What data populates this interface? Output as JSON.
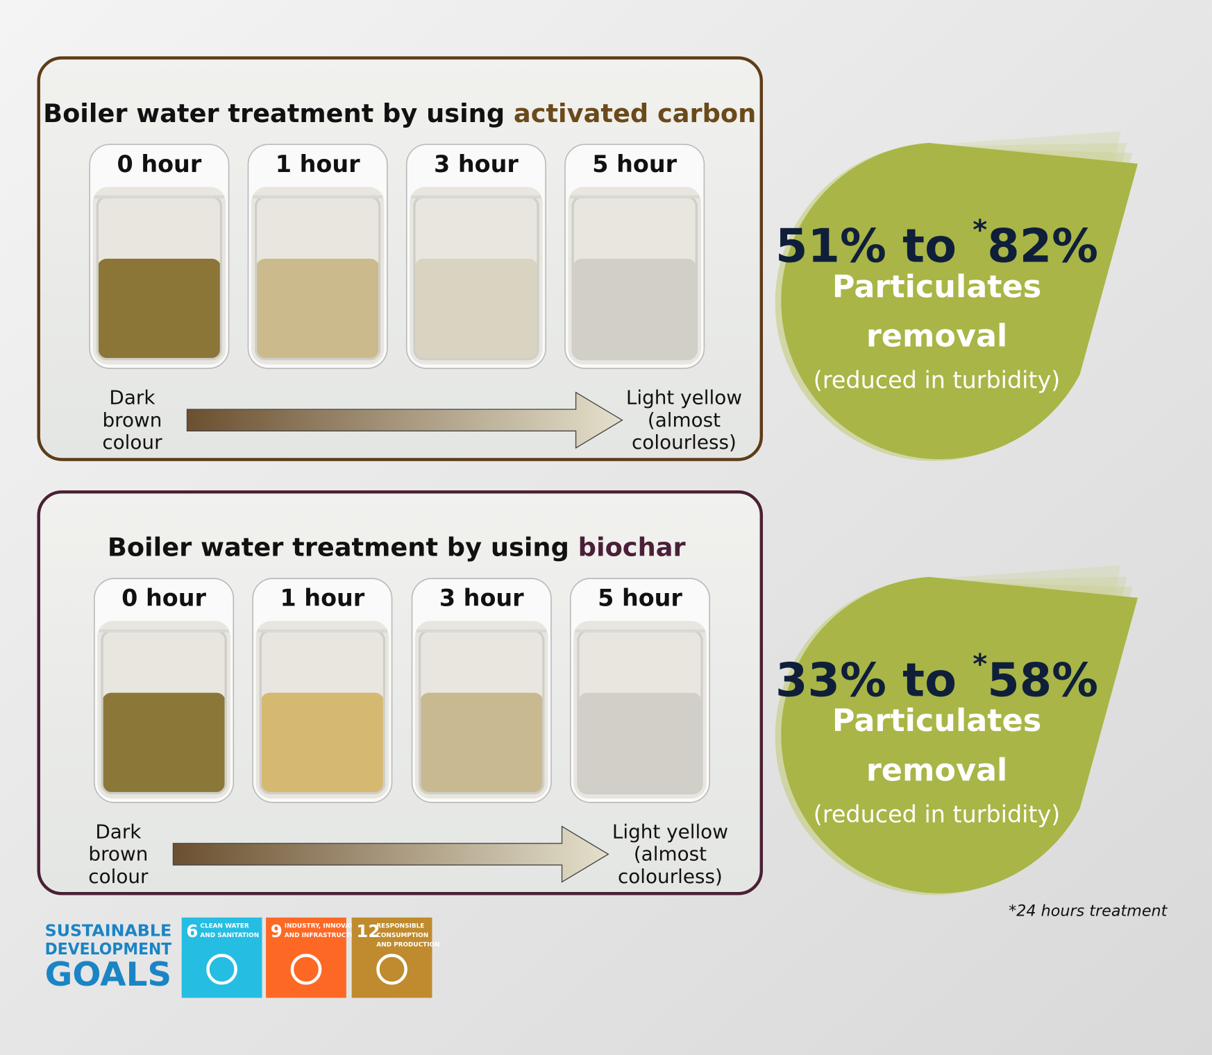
{
  "panels": [
    {
      "title": [
        "Boiler water treatment by using ",
        "activated carbon"
      ],
      "beakers": [
        "0 hour",
        "1 hour",
        "3 hour",
        "5 hour"
      ],
      "start_label": [
        "Dark",
        "brown",
        "colour"
      ],
      "end_label": [
        "Light yellow",
        "(almost",
        "colourless)"
      ]
    },
    {
      "title": [
        "Boiler water treatment by using ",
        "biochar"
      ],
      "beakers": [
        "0 hour",
        "1 hour",
        "3 hour",
        "5 hour"
      ],
      "start_label": [
        "Dark",
        "brown",
        "colour"
      ],
      "end_label": [
        "Light yellow",
        "(almost",
        "colourless)"
      ]
    }
  ],
  "stats": [
    {
      "range": [
        "51% to ",
        "*",
        "82%"
      ],
      "lines": [
        "Particulates",
        "removal"
      ],
      "note": "(reduced in turbidity)"
    },
    {
      "range": [
        "33% to ",
        "*",
        "58%"
      ],
      "lines": [
        "Particulates",
        "removal"
      ],
      "note": "(reduced in turbidity)"
    }
  ],
  "footnote": "*24 hours treatment",
  "sdg": {
    "logo": [
      "SUSTAINABLE",
      "DEVELOPMENT",
      "GOALS"
    ],
    "tiles": [
      {
        "number": "6",
        "text": [
          "CLEAN WATER",
          "AND SANITATION"
        ]
      },
      {
        "number": "9",
        "text": [
          "INDUSTRY, INNOVATION",
          "AND INFRASTRUCTURE"
        ]
      },
      {
        "number": "12",
        "text": [
          "RESPONSIBLE",
          "CONSUMPTION",
          "AND PRODUCTION"
        ]
      }
    ]
  }
}
